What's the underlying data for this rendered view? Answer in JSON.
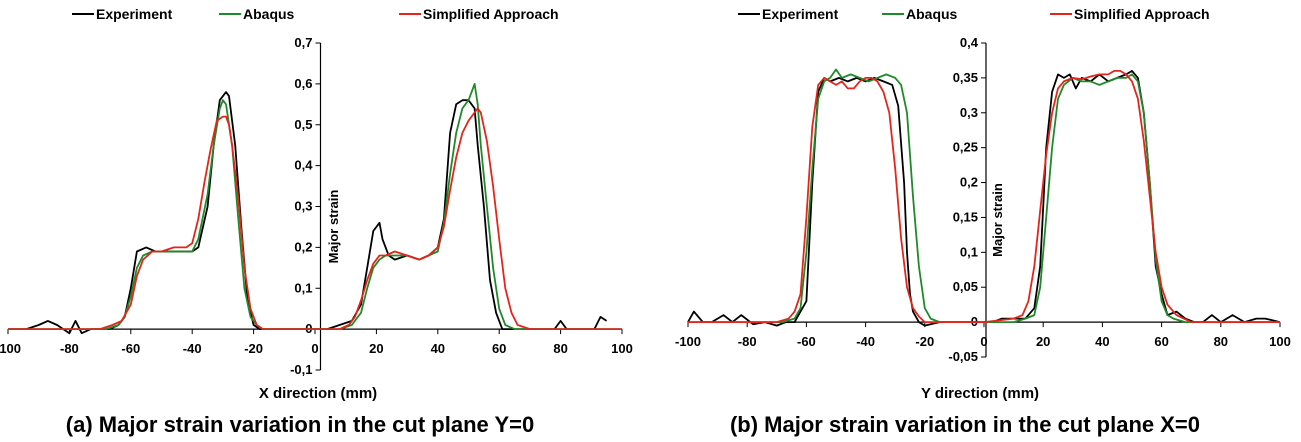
{
  "colors": {
    "Experiment": "#000000",
    "Abaqus": "#1f8a2a",
    "Simplified Approach": "#e4251b"
  },
  "chart_data": [
    {
      "type": "line",
      "title": "(a) Major strain variation in the cut plane Y=0",
      "xlabel": "X direction (mm)",
      "ylabel": "Major strain",
      "xlim": [
        -100,
        100
      ],
      "ylim": [
        -0.1,
        0.7
      ],
      "legend_position": "top",
      "grid": false,
      "x_ticks": [
        -100,
        -80,
        -60,
        -40,
        -20,
        0,
        20,
        40,
        60,
        80,
        100
      ],
      "x_tick_labels": [
        "-100",
        "-80",
        "-60",
        "-40",
        "-20",
        "0",
        "20",
        "40",
        "60",
        "80",
        "100"
      ],
      "y_ticks": [
        -0.1,
        0,
        0.1,
        0.2,
        0.3,
        0.4,
        0.5,
        0.6,
        0.7
      ],
      "y_tick_labels": [
        "-0,1",
        "0",
        "0,1",
        "0,2",
        "0,3",
        "0,4",
        "0,5",
        "0,6",
        "0,7"
      ],
      "series": [
        {
          "name": "Experiment",
          "x": [
            -100,
            -94,
            -90,
            -87,
            -84,
            -80,
            -78,
            -76,
            -73,
            -70,
            -67,
            -64,
            -62,
            -60,
            -58,
            -55,
            -52,
            -50,
            -46,
            -42,
            -40,
            -38,
            -35,
            -33,
            -31,
            -29,
            -28,
            -26,
            -24,
            -22,
            -20,
            -18,
            -15,
            -10,
            -5,
            0,
            4,
            8,
            12,
            15,
            17,
            19,
            21,
            22,
            24,
            26,
            30,
            34,
            37,
            40,
            42,
            44,
            46,
            48,
            50,
            52,
            53,
            55,
            57,
            59,
            61,
            64,
            68,
            72,
            76,
            78,
            80,
            82,
            85,
            88,
            91,
            93,
            95
          ],
          "y": [
            0.0,
            0.0,
            0.01,
            0.02,
            0.01,
            -0.01,
            0.02,
            -0.01,
            0.0,
            0.0,
            0.0,
            0.01,
            0.03,
            0.1,
            0.19,
            0.2,
            0.19,
            0.19,
            0.19,
            0.19,
            0.19,
            0.2,
            0.3,
            0.45,
            0.56,
            0.58,
            0.57,
            0.45,
            0.25,
            0.07,
            0.01,
            0.0,
            0.0,
            0.0,
            0.0,
            0.0,
            0.0,
            0.01,
            0.02,
            0.06,
            0.15,
            0.24,
            0.26,
            0.22,
            0.18,
            0.17,
            0.18,
            0.17,
            0.18,
            0.2,
            0.27,
            0.48,
            0.55,
            0.56,
            0.56,
            0.54,
            0.45,
            0.3,
            0.12,
            0.04,
            0.0,
            0.0,
            0.0,
            0.0,
            0.0,
            0.0,
            0.02,
            0.0,
            0.0,
            0.0,
            0.0,
            0.03,
            0.02
          ]
        },
        {
          "name": "Abaqus",
          "x": [
            -100,
            -80,
            -68,
            -64,
            -62,
            -60,
            -58,
            -56,
            -53,
            -50,
            -46,
            -42,
            -40,
            -38,
            -35,
            -33,
            -31,
            -30,
            -29,
            -27,
            -25,
            -23,
            -21,
            -19,
            -17,
            -10,
            0,
            8,
            12,
            15,
            17,
            19,
            21,
            23,
            26,
            30,
            34,
            37,
            40,
            42,
            44,
            46,
            48,
            50,
            51,
            52,
            53,
            54,
            56,
            58,
            60,
            62,
            65,
            70,
            80,
            100
          ],
          "y": [
            0.0,
            0.0,
            0.0,
            0.01,
            0.03,
            0.08,
            0.15,
            0.18,
            0.19,
            0.19,
            0.19,
            0.19,
            0.19,
            0.22,
            0.33,
            0.45,
            0.54,
            0.56,
            0.55,
            0.45,
            0.27,
            0.1,
            0.03,
            0.01,
            0.0,
            0.0,
            0.0,
            0.0,
            0.01,
            0.04,
            0.1,
            0.15,
            0.17,
            0.18,
            0.18,
            0.18,
            0.17,
            0.18,
            0.19,
            0.26,
            0.38,
            0.48,
            0.54,
            0.56,
            0.58,
            0.6,
            0.55,
            0.45,
            0.3,
            0.15,
            0.05,
            0.01,
            0.0,
            0.0,
            0.0,
            0.0
          ]
        },
        {
          "name": "Simplified Approach",
          "x": [
            -100,
            -80,
            -70,
            -66,
            -63,
            -60,
            -58,
            -56,
            -53,
            -50,
            -46,
            -42,
            -40,
            -38,
            -36,
            -34,
            -32,
            -30,
            -29,
            -28,
            -27,
            -25,
            -23,
            -21,
            -19,
            -17,
            -10,
            0,
            8,
            11,
            13,
            15,
            17,
            19,
            21,
            23,
            26,
            30,
            34,
            37,
            40,
            42,
            44,
            46,
            48,
            50,
            52,
            53,
            54,
            56,
            58,
            60,
            62,
            64,
            66,
            70,
            80,
            100
          ],
          "y": [
            0.0,
            0.0,
            0.0,
            0.01,
            0.02,
            0.06,
            0.13,
            0.17,
            0.19,
            0.19,
            0.2,
            0.2,
            0.21,
            0.27,
            0.36,
            0.44,
            0.51,
            0.52,
            0.52,
            0.5,
            0.45,
            0.32,
            0.15,
            0.05,
            0.01,
            0.0,
            0.0,
            0.0,
            0.0,
            0.01,
            0.03,
            0.07,
            0.12,
            0.16,
            0.18,
            0.18,
            0.19,
            0.18,
            0.17,
            0.18,
            0.2,
            0.25,
            0.34,
            0.42,
            0.48,
            0.51,
            0.53,
            0.54,
            0.53,
            0.46,
            0.35,
            0.22,
            0.1,
            0.04,
            0.01,
            0.0,
            0.0,
            0.0
          ]
        }
      ]
    },
    {
      "type": "line",
      "title": "(b) Major strain variation in the cut plane X=0",
      "xlabel": "Y direction (mm)",
      "ylabel": "Major strain",
      "xlim": [
        -100,
        100
      ],
      "ylim": [
        -0.05,
        0.4
      ],
      "legend_position": "top",
      "grid": false,
      "x_ticks": [
        -100,
        -80,
        -60,
        -40,
        -20,
        0,
        20,
        40,
        60,
        80,
        100
      ],
      "x_tick_labels": [
        "-100",
        "-80",
        "-60",
        "-40",
        "-20",
        "0",
        "20",
        "40",
        "60",
        "80",
        "100"
      ],
      "y_ticks": [
        -0.05,
        0,
        0.05,
        0.1,
        0.15,
        0.2,
        0.25,
        0.3,
        0.35,
        0.4
      ],
      "y_tick_labels": [
        "-0,05",
        "0",
        "0,05",
        "0,1",
        "0,15",
        "0,2",
        "0,25",
        "0,3",
        "0,35",
        "0,4"
      ],
      "series": [
        {
          "name": "Experiment",
          "x": [
            -100,
            -98,
            -95,
            -92,
            -88,
            -85,
            -82,
            -78,
            -74,
            -70,
            -67,
            -64,
            -62,
            -60,
            -58,
            -56,
            -54,
            -52,
            -49,
            -46,
            -43,
            -40,
            -37,
            -34,
            -31,
            -29,
            -27,
            -26,
            -25,
            -24,
            -22,
            -20,
            -15,
            -10,
            -5,
            0,
            3,
            6,
            10,
            14,
            17,
            19,
            21,
            23,
            25,
            27,
            29,
            31,
            33,
            36,
            39,
            42,
            45,
            48,
            50,
            52,
            54,
            56,
            58,
            60,
            62,
            65,
            68,
            71,
            74,
            77,
            80,
            84,
            88,
            92,
            95,
            100
          ],
          "y": [
            0.0,
            0.015,
            0.0,
            0.0,
            0.01,
            0.0,
            0.01,
            -0.003,
            0.0,
            -0.005,
            0.0,
            0.0,
            0.015,
            0.03,
            0.2,
            0.33,
            0.35,
            0.345,
            0.35,
            0.345,
            0.35,
            0.345,
            0.35,
            0.345,
            0.34,
            0.31,
            0.2,
            0.1,
            0.04,
            0.015,
            0.0,
            -0.005,
            0.0,
            0.0,
            0.0,
            0.0,
            0.0,
            0.005,
            0.005,
            0.005,
            0.02,
            0.08,
            0.25,
            0.33,
            0.355,
            0.35,
            0.355,
            0.335,
            0.35,
            0.345,
            0.355,
            0.345,
            0.35,
            0.355,
            0.36,
            0.35,
            0.3,
            0.2,
            0.08,
            0.04,
            0.01,
            0.015,
            0.005,
            0.0,
            0.0,
            0.01,
            0.0,
            0.01,
            0.0,
            0.005,
            0.005,
            0.0
          ]
        },
        {
          "name": "Abaqus",
          "x": [
            -100,
            -80,
            -72,
            -68,
            -64,
            -62,
            -60,
            -58,
            -56,
            -54,
            -52,
            -50,
            -48,
            -45,
            -42,
            -39,
            -36,
            -33,
            -30,
            -28,
            -26,
            -24,
            -22,
            -20,
            -18,
            -15,
            -10,
            0,
            10,
            14,
            17,
            19,
            21,
            23,
            25,
            27,
            30,
            33,
            36,
            39,
            42,
            45,
            48,
            50,
            52,
            54,
            56,
            58,
            60,
            62,
            64,
            68,
            72,
            80,
            90,
            100
          ],
          "y": [
            0.0,
            0.0,
            0.0,
            0.0,
            0.005,
            0.02,
            0.1,
            0.22,
            0.32,
            0.345,
            0.35,
            0.362,
            0.35,
            0.355,
            0.35,
            0.345,
            0.35,
            0.355,
            0.35,
            0.34,
            0.3,
            0.18,
            0.08,
            0.02,
            0.005,
            0.0,
            0.0,
            0.0,
            0.0,
            0.005,
            0.01,
            0.05,
            0.15,
            0.25,
            0.32,
            0.34,
            0.35,
            0.345,
            0.345,
            0.34,
            0.345,
            0.35,
            0.35,
            0.355,
            0.345,
            0.3,
            0.2,
            0.09,
            0.03,
            0.01,
            0.005,
            0.0,
            0.0,
            0.0,
            0.0,
            0.0
          ]
        },
        {
          "name": "Simplified Approach",
          "x": [
            -100,
            -80,
            -70,
            -66,
            -64,
            -62,
            -60,
            -58,
            -56,
            -54,
            -52,
            -50,
            -48,
            -46,
            -44,
            -42,
            -40,
            -38,
            -36,
            -34,
            -32,
            -30,
            -28,
            -26,
            -24,
            -22,
            -20,
            -18,
            -15,
            -10,
            0,
            10,
            13,
            15,
            17,
            19,
            21,
            23,
            25,
            27,
            30,
            33,
            36,
            39,
            42,
            44,
            46,
            48,
            50,
            52,
            54,
            56,
            58,
            60,
            62,
            65,
            70,
            80,
            90,
            100
          ],
          "y": [
            0.0,
            0.0,
            0.0,
            0.005,
            0.015,
            0.04,
            0.15,
            0.28,
            0.34,
            0.35,
            0.345,
            0.34,
            0.345,
            0.335,
            0.335,
            0.345,
            0.35,
            0.35,
            0.345,
            0.33,
            0.3,
            0.22,
            0.12,
            0.05,
            0.02,
            0.008,
            0.0,
            0.0,
            0.0,
            0.0,
            0.0,
            0.005,
            0.01,
            0.03,
            0.08,
            0.16,
            0.24,
            0.3,
            0.335,
            0.345,
            0.35,
            0.348,
            0.352,
            0.355,
            0.355,
            0.36,
            0.36,
            0.355,
            0.345,
            0.32,
            0.26,
            0.18,
            0.1,
            0.05,
            0.025,
            0.01,
            0.0,
            0.0,
            0.0,
            0.0
          ]
        }
      ]
    }
  ]
}
